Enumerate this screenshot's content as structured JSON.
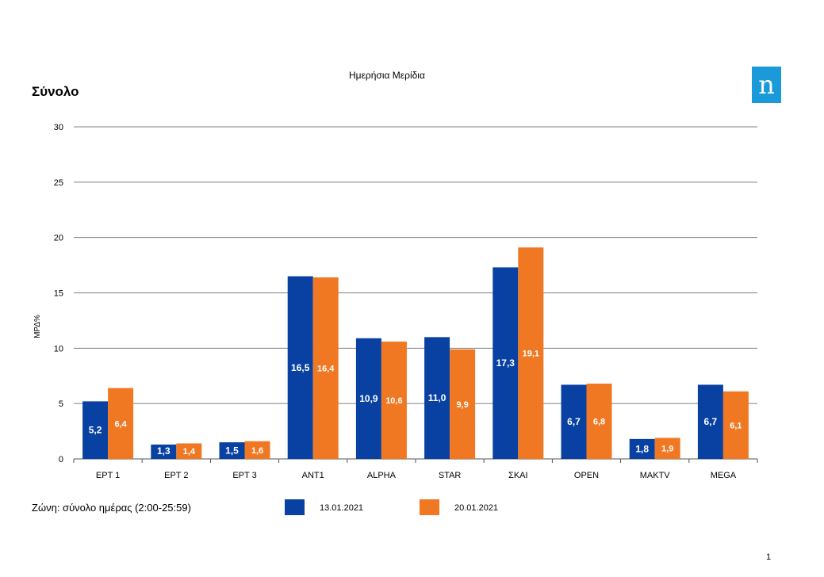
{
  "page": {
    "title": "Ημερήσια Μερίδια",
    "section_title": "Σύνολο",
    "logo_letter": "n",
    "zone_label": "Ζώνη: σύνολο ημέρας (2:00-25:59)",
    "page_number": "1"
  },
  "colors": {
    "series_1": "#0841a1",
    "series_2": "#f07823",
    "logo": "#1a9ad9",
    "grid": "#7f7f7f"
  },
  "chart_data": {
    "type": "bar",
    "title": "Ημερήσια Μερίδια",
    "ylabel": "ΜΡΔ%",
    "xlabel": "",
    "ylim": [
      0,
      30
    ],
    "yticks": [
      0,
      5,
      10,
      15,
      20,
      25,
      30
    ],
    "grid": true,
    "legend_position": "bottom",
    "categories": [
      "ΕΡΤ 1",
      "ΕΡΤ 2",
      "ΕΡΤ 3",
      "ANT1",
      "ALPHA",
      "STAR",
      "ΣΚΑΙ",
      "OPEN",
      "MAKTV",
      "MEGA"
    ],
    "series": [
      {
        "name": "13.01.2021",
        "color": "#0841a1",
        "values": [
          5.2,
          1.3,
          1.5,
          16.5,
          10.9,
          11.0,
          17.3,
          6.7,
          1.8,
          6.7
        ],
        "labels": [
          "5,2",
          "1,3",
          "1,5",
          "16,5",
          "10,9",
          "11,0",
          "17,3",
          "6,7",
          "1,8",
          "6,7"
        ]
      },
      {
        "name": "20.01.2021",
        "color": "#f07823",
        "values": [
          6.4,
          1.4,
          1.6,
          16.4,
          10.6,
          9.9,
          19.1,
          6.8,
          1.9,
          6.1
        ],
        "labels": [
          "6,4",
          "1,4",
          "1,6",
          "16,4",
          "10,6",
          "9,9",
          "19,1",
          "6,8",
          "1,9",
          "6,1"
        ]
      }
    ]
  }
}
